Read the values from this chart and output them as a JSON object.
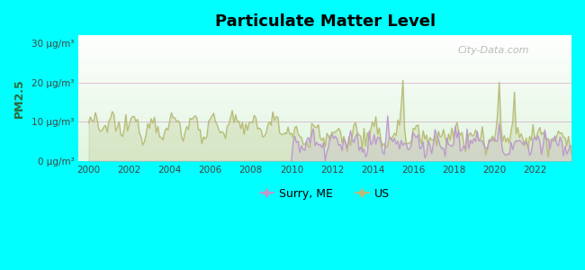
{
  "title": "Particulate Matter Level",
  "ylabel": "PM2.5",
  "background_color": "#00ffff",
  "ylim": [
    0,
    32
  ],
  "xlim_start": 1999.5,
  "xlim_end": 2023.8,
  "yticks": [
    0,
    10,
    20,
    30
  ],
  "ytick_labels": [
    "0 μg/m³",
    "10 μg/m³",
    "20 μg/m³",
    "30 μg/m³"
  ],
  "xticks": [
    2000,
    2002,
    2004,
    2006,
    2008,
    2010,
    2012,
    2014,
    2016,
    2018,
    2020,
    2022
  ],
  "surry_color": "#bb99cc",
  "us_color": "#b8bc78",
  "watermark": "City-Data.com",
  "legend_surry": "Surry, ME",
  "legend_us": "US",
  "plot_bg_colors": [
    "#ffffff",
    "#d8f0d8"
  ],
  "grid_color": "#cc99cc",
  "grid_alpha": 0.4
}
